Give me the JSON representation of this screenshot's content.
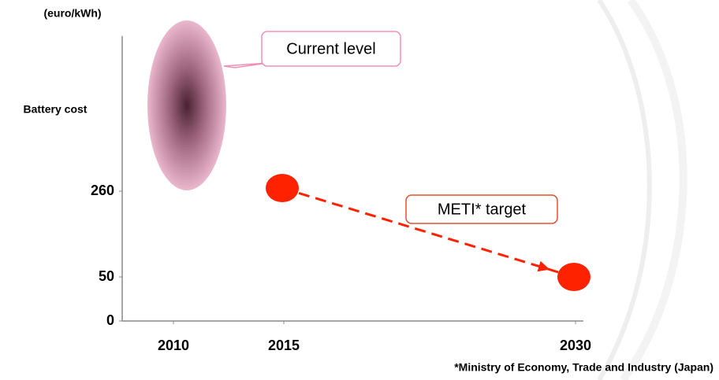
{
  "chart_data": {
    "type": "scatter",
    "y_unit_label": "(euro/kWh)",
    "ylabel": "Battery cost",
    "footnote": "*Ministry of Economy, Trade and Industry (Japan)",
    "series": [
      {
        "name": "Current level",
        "color": "#c77f9f",
        "x": [
          2010
        ],
        "values": [
          470
        ]
      },
      {
        "name": "METI* target",
        "color": "#ff2200",
        "x": [
          2015,
          2030
        ],
        "values": [
          260,
          50
        ]
      }
    ],
    "xlim": [
      2008,
      2030.4
    ],
    "ylim": [
      0,
      640
    ],
    "xticks": [
      2010,
      2015,
      2030
    ],
    "yticks": [
      0,
      50,
      260
    ]
  }
}
